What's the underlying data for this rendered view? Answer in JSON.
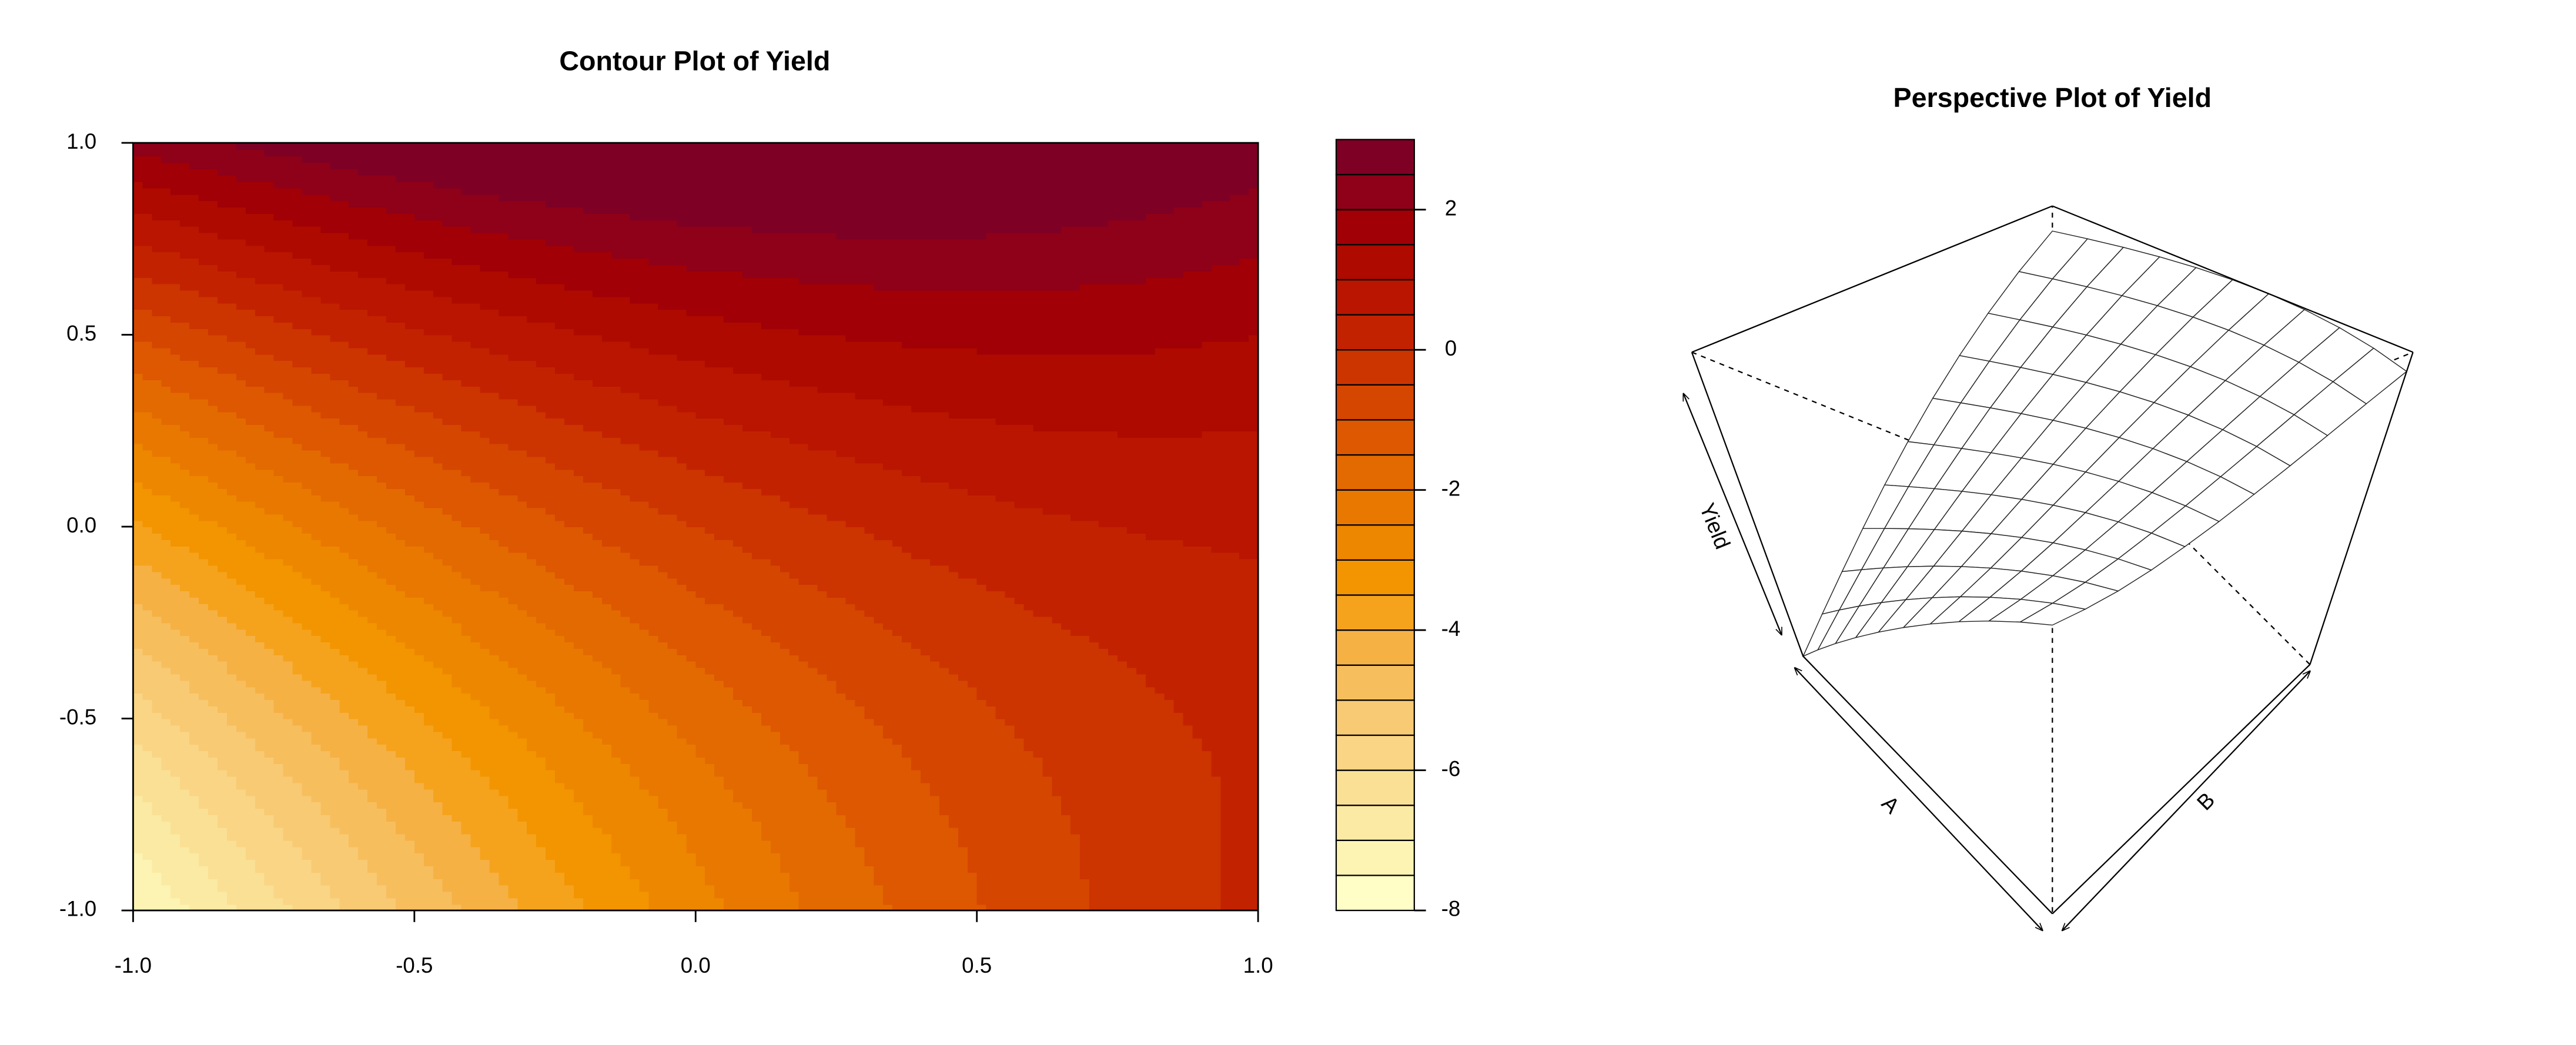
{
  "chart_data": [
    {
      "type": "contour",
      "title": "Contour Plot of Yield",
      "x": [
        -1,
        -0.8,
        -0.6,
        -0.4,
        -0.2,
        0,
        0.2,
        0.4,
        0.6,
        0.8,
        1
      ],
      "y": [
        -1,
        -0.8,
        -0.6,
        -0.4,
        -0.2,
        0,
        0.2,
        0.4,
        0.6,
        0.8,
        1
      ],
      "z": [
        [
          -7.55,
          -6.42,
          -5.37,
          -4.4,
          -3.51,
          -2.7,
          -1.97,
          -1.32,
          -0.75,
          -0.26,
          0.15
        ],
        [
          -6.9,
          -5.84,
          -4.86,
          -3.96,
          -3.14,
          -2.4,
          -1.74,
          -1.16,
          -0.66,
          -0.24,
          0.1
        ],
        [
          -6.19,
          -5.2,
          -4.29,
          -3.46,
          -2.71,
          -2.04,
          -1.45,
          -0.94,
          -0.51,
          -0.16,
          0.11
        ],
        [
          -5.4,
          -4.48,
          -3.64,
          -2.88,
          -2.2,
          -1.6,
          -1.08,
          -0.64,
          -0.28,
          0,
          0.2
        ],
        [
          -4.53,
          -3.68,
          -2.91,
          -2.22,
          -1.61,
          -1.08,
          -0.63,
          -0.26,
          0.03,
          0.24,
          0.37
        ],
        [
          -3.6,
          -2.82,
          -2.12,
          -1.5,
          -0.96,
          -0.5,
          -0.12,
          0.18,
          0.4,
          0.54,
          0.6
        ],
        [
          -2.59,
          -1.88,
          -1.25,
          -0.7,
          -0.23,
          0.16,
          0.47,
          0.7,
          0.85,
          0.92,
          0.91
        ],
        [
          -1.52,
          -0.88,
          -0.32,
          0.16,
          0.56,
          0.88,
          1.12,
          1.28,
          1.36,
          1.36,
          1.28
        ],
        [
          -0.37,
          0.2,
          0.69,
          1.1,
          1.43,
          1.68,
          1.85,
          1.94,
          1.95,
          1.88,
          1.73
        ],
        [
          0.86,
          1.36,
          1.78,
          2.12,
          2.38,
          2.56,
          2.66,
          2.68,
          2.62,
          2.48,
          2.26
        ],
        [
          2.15,
          2.58,
          2.93,
          3.2,
          3.39,
          3.5,
          3.53,
          3.48,
          3.35,
          3.14,
          2.85
        ]
      ],
      "xlim": [
        -1,
        1
      ],
      "ylim": [
        -1,
        1
      ],
      "xticks": [
        {
          "value": -1,
          "label": "-1.0"
        },
        -0.5,
        {
          "value": 0,
          "label": "0.0"
        },
        0.5,
        {
          "value": 1,
          "label": "1.0"
        }
      ],
      "yticks": [
        {
          "value": -1,
          "label": "-1.0"
        },
        -0.5,
        {
          "value": 0,
          "label": "0.0"
        },
        0.5,
        {
          "value": 1,
          "label": "1.0"
        }
      ],
      "zlim": [
        -8,
        3
      ],
      "zticks": [
        -8,
        -6,
        -4,
        -2,
        0,
        2
      ],
      "colors": [
        "#FFFEC6",
        "#FDF4B3",
        "#FBEAA3",
        "#FAE095",
        "#F9D585",
        "#F8CA73",
        "#F7BE5E",
        "#F6B145",
        "#F5A31D",
        "#F29500",
        "#EE8700",
        "#E97800",
        "#E36A00",
        "#DD5800",
        "#D54600",
        "#CC3400",
        "#C32200",
        "#B91500",
        "#AE0A00",
        "#A00006",
        "#8F0019",
        "#7E0025"
      ]
    },
    {
      "type": "surface",
      "title": "Perspective Plot of Yield",
      "xlabel": "A",
      "ylabel": "B",
      "zlabel": "Yield"
    }
  ]
}
